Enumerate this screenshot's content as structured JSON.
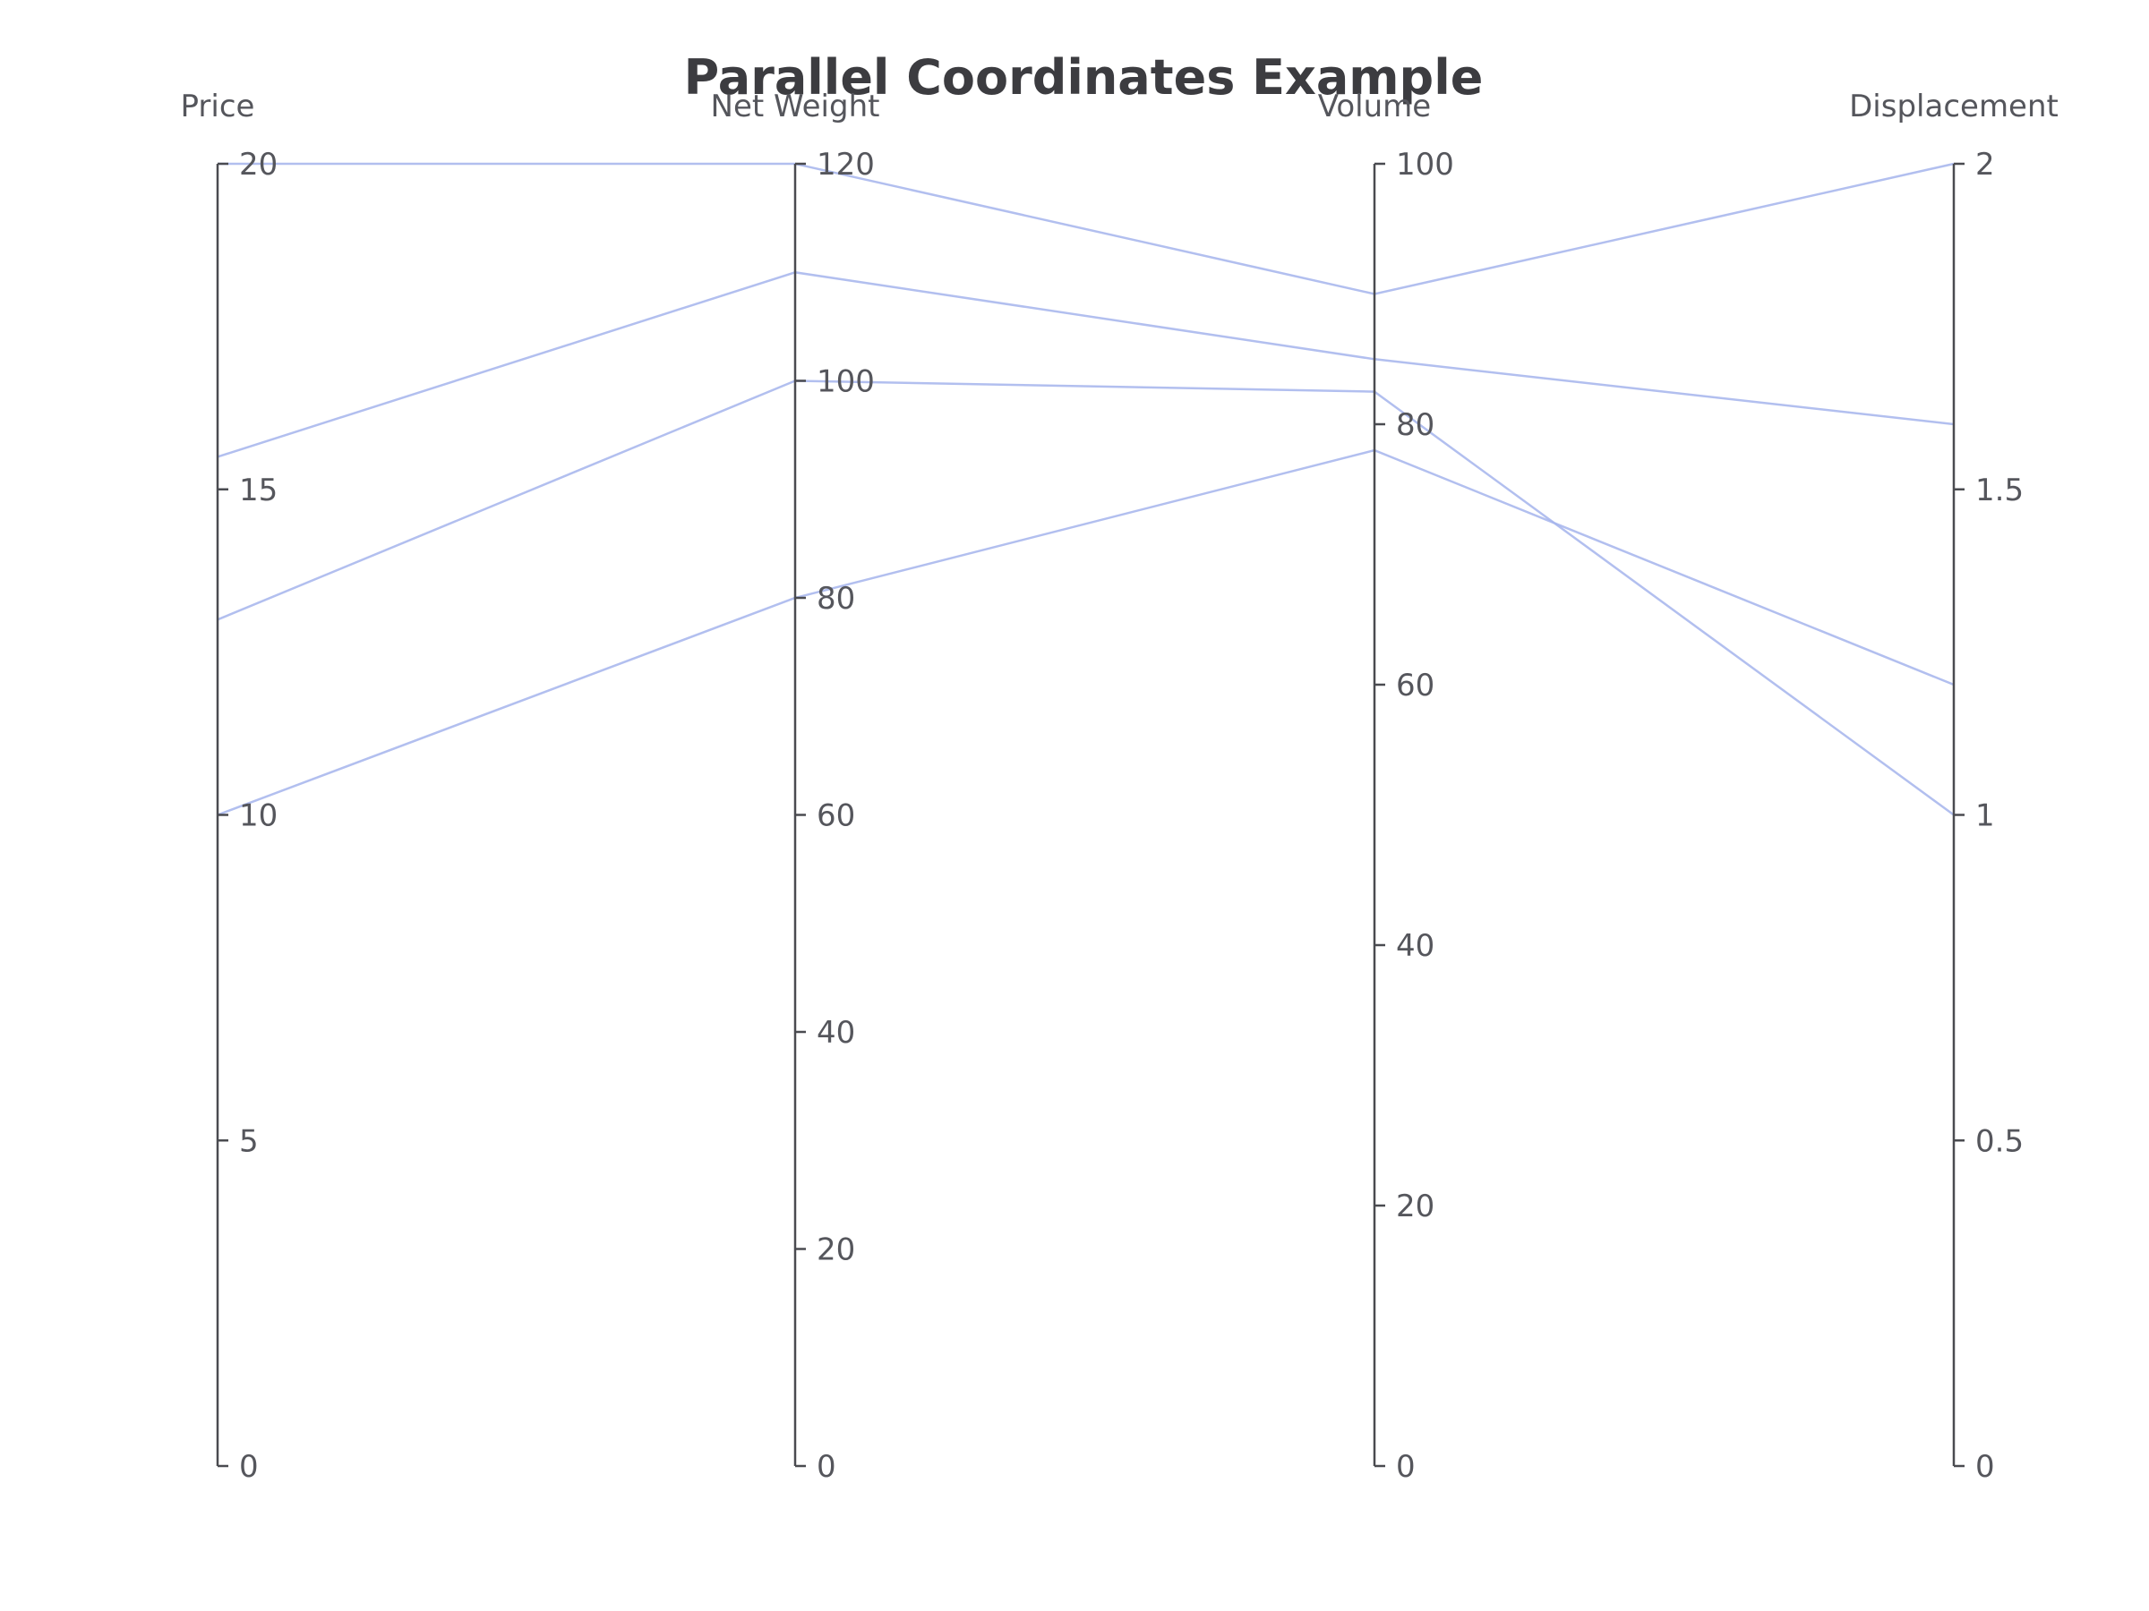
{
  "colors": {
    "line": "#a5b4ec",
    "axis": "#4a4b50",
    "text": "#55565c",
    "title": "#3c3c40"
  },
  "chart_data": {
    "type": "parallel-coordinates",
    "title": "Parallel Coordinates Example",
    "grid": false,
    "axes": [
      {
        "name": "Price",
        "min": 0,
        "max": 20,
        "ticks": [
          "0",
          "5",
          "10",
          "15",
          "20"
        ]
      },
      {
        "name": "Net Weight",
        "min": 0,
        "max": 120,
        "ticks": [
          "0",
          "20",
          "40",
          "60",
          "80",
          "100",
          "120"
        ]
      },
      {
        "name": "Volume",
        "min": 0,
        "max": 100,
        "ticks": [
          "0",
          "20",
          "40",
          "60",
          "80",
          "100"
        ]
      },
      {
        "name": "Displacement",
        "min": 0,
        "max": 2,
        "ticks": [
          "0",
          "0.5",
          "1",
          "1.5",
          "2"
        ]
      }
    ],
    "series": [
      {
        "values": [
          20,
          120,
          90,
          2
        ]
      },
      {
        "values": [
          15.5,
          110,
          85,
          1.6
        ]
      },
      {
        "values": [
          13,
          100,
          82.5,
          1
        ]
      },
      {
        "values": [
          10,
          80,
          78,
          1.2
        ]
      }
    ]
  }
}
